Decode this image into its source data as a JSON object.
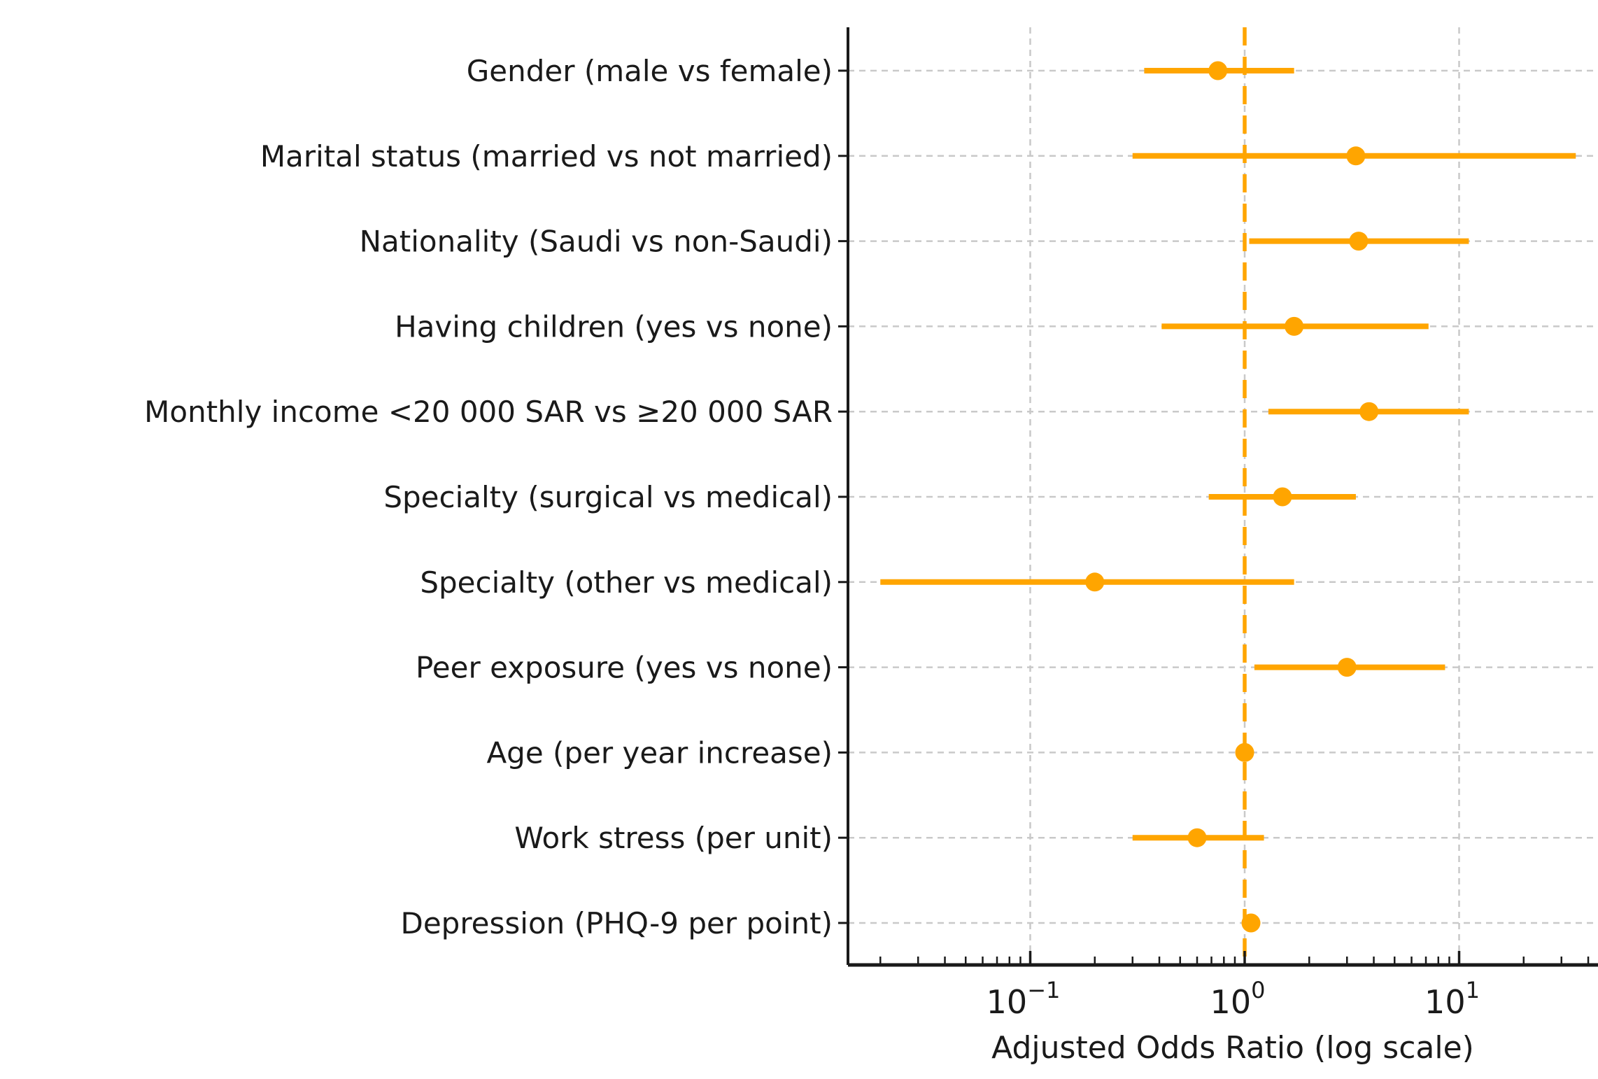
{
  "chart_data": {
    "type": "scatter",
    "subtype": "forest-plot",
    "title": "",
    "xlabel": "Adjusted Odds Ratio (log scale)",
    "ylabel": "",
    "x_scale": "log",
    "xlim": [
      0.014,
      50
    ],
    "reference_line": 1.0,
    "grid": true,
    "legend": false,
    "categories": [
      "Gender (male vs female)",
      "Marital status (married vs not married)",
      "Nationality (Saudi vs non-Saudi)",
      "Having children (yes vs none)",
      "Monthly income <20 000 SAR vs ≥20 000 SAR",
      "Specialty (surgical vs medical)",
      "Specialty (other vs medical)",
      "Peer exposure (yes vs none)",
      "Age (per year increase)",
      "Work stress (per unit)",
      "Depression (PHQ-9 per point)"
    ],
    "series": [
      {
        "name": "Adjusted odds ratio",
        "or_values": [
          0.75,
          3.3,
          3.4,
          1.7,
          3.8,
          1.5,
          0.2,
          3.0,
          1.0,
          0.6,
          1.07
        ],
        "ci_low": [
          0.34,
          0.3,
          1.05,
          0.41,
          1.29,
          0.68,
          0.02,
          1.11,
          0.96,
          0.3,
          1.01
        ],
        "ci_high": [
          1.7,
          35.0,
          11.1,
          7.2,
          11.1,
          3.3,
          1.7,
          8.6,
          1.05,
          1.23,
          1.14
        ]
      }
    ],
    "x_ticks": [
      {
        "value": 0.1,
        "base": "10",
        "exponent": "−1"
      },
      {
        "value": 1,
        "base": "10",
        "exponent": "0"
      },
      {
        "value": 10,
        "base": "10",
        "exponent": "1"
      }
    ],
    "colors": {
      "marker": "#FFA500",
      "error_bar": "#FFA500",
      "reference_line": "#FFA500",
      "grid": "#c9c9c9",
      "axis": "#1a1a1a",
      "text": "#1a1a1a",
      "background": "#ffffff"
    }
  }
}
